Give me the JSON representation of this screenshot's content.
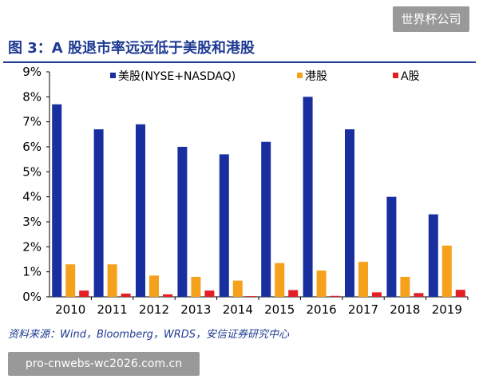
{
  "watermark_top": "世界杯公司",
  "figure_title": "图 3：A 股退市率远远低于美股和港股",
  "source_note": "资料来源：Wind，Bloomberg，WRDS，安信证券研究中心",
  "watermark_bottom": "pro-cnwebs-wc2026.com.cn",
  "chart_data": {
    "type": "bar",
    "title": "",
    "xlabel": "",
    "ylabel": "",
    "categories": [
      "2010",
      "2011",
      "2012",
      "2013",
      "2014",
      "2015",
      "2016",
      "2017",
      "2018",
      "2019"
    ],
    "ylim": [
      0,
      9
    ],
    "yticks": [
      "0%",
      "1%",
      "2%",
      "3%",
      "4%",
      "5%",
      "6%",
      "7%",
      "8%",
      "9%"
    ],
    "grid": false,
    "legend_position": "top",
    "series": [
      {
        "name": "美股(NYSE+NASDAQ)",
        "color": "#1a2f9f",
        "values": [
          7.7,
          6.7,
          6.9,
          6.0,
          5.7,
          6.2,
          8.0,
          6.7,
          4.0,
          3.3
        ]
      },
      {
        "name": "港股",
        "color": "#f5a11c",
        "values": [
          1.3,
          1.3,
          0.85,
          0.8,
          0.65,
          1.35,
          1.05,
          1.4,
          0.8,
          2.05
        ]
      },
      {
        "name": "A股",
        "color": "#e31e24",
        "values": [
          0.25,
          0.13,
          0.1,
          0.25,
          0.03,
          0.27,
          0.04,
          0.18,
          0.15,
          0.28
        ]
      }
    ]
  }
}
